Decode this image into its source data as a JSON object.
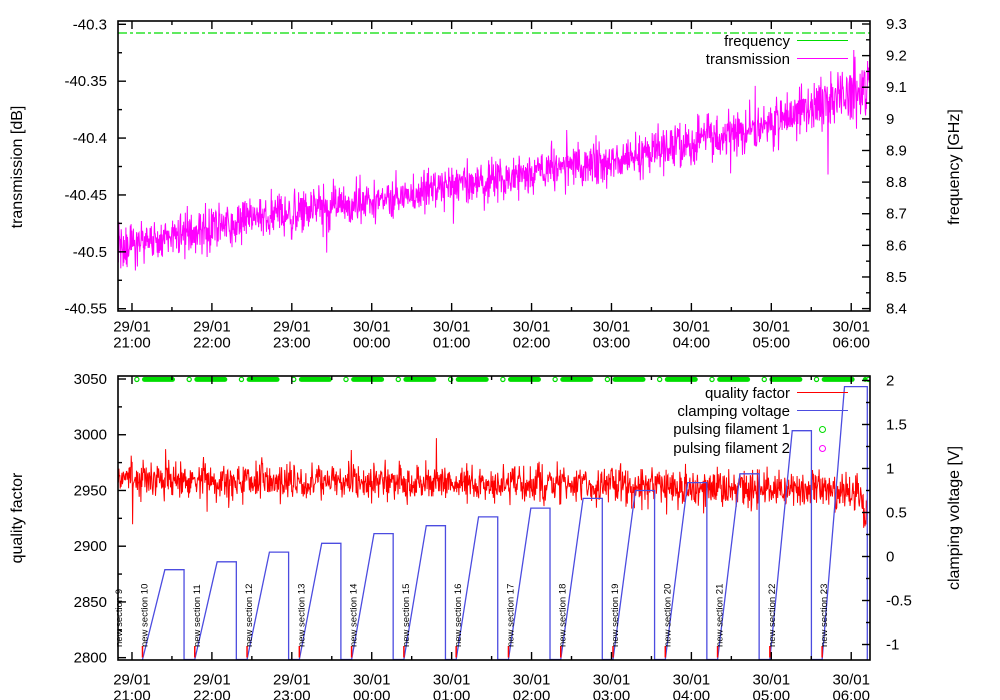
{
  "colors": {
    "magenta": "#ff00ff",
    "red": "#ff0000",
    "green": "#00dd00",
    "blue": "#4c4ce0",
    "axis": "#000000",
    "background": "#ffffff"
  },
  "chart_data": [
    {
      "type": "line",
      "panel": "top",
      "x_axis": {
        "lim_hours": [
          -0.175,
          9.235
        ],
        "major_tick_hours": [
          0,
          1,
          2,
          3,
          4,
          5,
          6,
          7,
          8,
          9
        ],
        "minor_tick_hours": [
          0.5,
          1.5,
          2.5,
          3.5,
          4.5,
          5.5,
          6.5,
          7.5,
          8.5
        ],
        "tick_dates": [
          "29/01",
          "29/01",
          "29/01",
          "30/01",
          "30/01",
          "30/01",
          "30/01",
          "30/01",
          "30/01",
          "30/01"
        ],
        "tick_times": [
          "21:00",
          "22:00",
          "23:00",
          "00:00",
          "01:00",
          "02:00",
          "03:00",
          "04:00",
          "05:00",
          "06:00"
        ]
      },
      "y_left": {
        "label": "transmission [dB]",
        "lim": [
          -40.552,
          -40.2971
        ],
        "ticks": [
          -40.3,
          -40.35,
          -40.4,
          -40.45,
          -40.5,
          -40.55
        ],
        "tick_labels": [
          "-40.3",
          "-40.35",
          "-40.4",
          "-40.45",
          "-40.5",
          "-40.55"
        ],
        "minor_ticks": [
          -40.325,
          -40.375,
          -40.425,
          -40.475,
          -40.525
        ]
      },
      "y_right": {
        "label": "frequency [GHz]",
        "lim": [
          8.3924,
          9.3095
        ],
        "ticks": [
          9.3,
          9.2,
          9.1,
          9,
          8.9,
          8.8,
          8.7,
          8.6,
          8.5,
          8.4
        ],
        "tick_labels": [
          "9.3",
          "9.2",
          "9.1",
          "9",
          "8.9",
          "8.8",
          "8.7",
          "8.6",
          "8.5",
          "8.4"
        ],
        "minor_ticks": [
          9.25,
          9.15,
          9.05,
          8.95,
          8.85,
          8.75,
          8.65,
          8.55,
          8.45
        ]
      },
      "legend": [
        {
          "label": "frequency",
          "color": "#00dd00",
          "marker": "line"
        },
        {
          "label": "transmission",
          "color": "#ff00ff",
          "marker": "line"
        }
      ],
      "series": [
        {
          "name": "frequency",
          "kind": "hline",
          "axis": "right",
          "value_ghz": 9.2715,
          "color": "#00dd00",
          "dash": "9 3 3 3"
        },
        {
          "name": "transmission",
          "kind": "noisy_line",
          "axis": "left",
          "color": "#ff00ff",
          "n": 1900,
          "t0": -0.175,
          "t1": 9.235,
          "seed": 42,
          "sigma": 0.0095,
          "spike_prob": 0.018,
          "spike_amp": 0.038,
          "widen_after": 8.2,
          "widen_rate": 0.55,
          "trend": [
            [
              -0.175,
              -40.497
            ],
            [
              0.5,
              -40.4875
            ],
            [
              1,
              -40.4785
            ],
            [
              1.5,
              -40.4715
            ],
            [
              2,
              -40.467
            ],
            [
              2.5,
              -40.461
            ],
            [
              3,
              -40.4545
            ],
            [
              3.5,
              -40.449
            ],
            [
              4,
              -40.4425
            ],
            [
              4.5,
              -40.4375
            ],
            [
              5,
              -40.4315
            ],
            [
              5.5,
              -40.4255
            ],
            [
              6,
              -40.4195
            ],
            [
              6.5,
              -40.4125
            ],
            [
              7,
              -40.4045
            ],
            [
              7.5,
              -40.397
            ],
            [
              8,
              -40.3875
            ],
            [
              8.5,
              -40.374
            ],
            [
              8.9,
              -40.3615
            ],
            [
              9.235,
              -40.3525
            ]
          ]
        }
      ]
    },
    {
      "type": "line",
      "panel": "bottom",
      "x_axis": {
        "lim_hours": [
          -0.175,
          9.235
        ],
        "major_tick_hours": [
          0,
          1,
          2,
          3,
          4,
          5,
          6,
          7,
          8,
          9
        ],
        "minor_tick_hours": [
          0.5,
          1.5,
          2.5,
          3.5,
          4.5,
          5.5,
          6.5,
          7.5,
          8.5
        ],
        "tick_dates": [
          "29/01",
          "29/01",
          "29/01",
          "30/01",
          "30/01",
          "30/01",
          "30/01",
          "30/01",
          "30/01",
          "30/01"
        ],
        "tick_times": [
          "21:00",
          "22:00",
          "23:00",
          "00:00",
          "01:00",
          "02:00",
          "03:00",
          "04:00",
          "05:00",
          "06:00"
        ]
      },
      "y_left": {
        "label": "quality factor",
        "lim": [
          2797.9,
          3052.7
        ],
        "ticks": [
          3050,
          3000,
          2950,
          2900,
          2850,
          2800
        ],
        "tick_labels": [
          "3050",
          "3000",
          "2950",
          "2900",
          "2850",
          "2800"
        ],
        "minor_ticks": [
          3025,
          2975,
          2925,
          2875,
          2825
        ]
      },
      "y_right": {
        "label": "clamping voltage [V]",
        "lim": [
          -1.176,
          2.051
        ],
        "ticks": [
          2,
          1.5,
          1,
          0.5,
          0,
          -0.5,
          -1
        ],
        "tick_labels": [
          "2",
          "1.5",
          "1",
          "0.5",
          "0",
          "-0.5",
          "-1"
        ],
        "minor_ticks": [
          1.75,
          1.25,
          0.75,
          0.25,
          -0.25,
          -0.75
        ]
      },
      "legend": [
        {
          "label": "quality factor",
          "color": "#ff0000",
          "marker": "line"
        },
        {
          "label": "clamping voltage",
          "color": "#4c4ce0",
          "marker": "line"
        },
        {
          "label": "pulsing filament 1",
          "color": "#00dd00",
          "marker": "circle"
        },
        {
          "label": "pulsing filament 2",
          "color": "#ff00ff",
          "marker": "circle"
        }
      ],
      "series": [
        {
          "name": "quality factor",
          "kind": "noisy_line",
          "axis": "left",
          "color": "#ff0000",
          "n": 1700,
          "t0": -0.175,
          "t1": 9.2,
          "seed": 7,
          "sigma": 8.2,
          "spike_prob": 0.02,
          "spike_amp": 30,
          "trend": [
            [
              -0.175,
              2961
            ],
            [
              2,
              2958.5
            ],
            [
              4,
              2956.5
            ],
            [
              6,
              2954
            ],
            [
              7.5,
              2951.5
            ],
            [
              9.0,
              2949
            ],
            [
              9.13,
              2948
            ],
            [
              9.17,
              2912
            ],
            [
              9.2,
              2946
            ]
          ]
        },
        {
          "name": "clamping voltage",
          "kind": "sawtooth",
          "axis": "right",
          "color": "#4c4ce0",
          "base_v": -1.17,
          "rise_hours": 0.28,
          "hold_hours": 0.52,
          "last_hold_hours": 0.565,
          "cycle_start_hours": [
            0.1315,
            0.7857,
            1.4399,
            2.0941,
            2.7483,
            3.4025,
            4.0567,
            4.7109,
            5.3651,
            6.0193,
            6.6735,
            7.3277,
            7.9819,
            8.6361
          ],
          "plateau_v": [
            -0.15,
            -0.06,
            0.05,
            0.15,
            0.26,
            0.35,
            0.45,
            0.55,
            0.66,
            0.75,
            0.84,
            0.94,
            1.43,
            1.93
          ]
        },
        {
          "name": "pulsing filament 1",
          "kind": "marker_row",
          "axis": "right",
          "color": "#00dd00",
          "row_v": 2.012,
          "circle_hours": [
            0.061,
            0.716,
            1.37,
            2.024,
            2.678,
            3.332,
            3.987,
            4.641,
            5.295,
            5.949,
            6.603,
            7.258,
            7.912,
            8.566,
            9.218
          ],
          "bar_hours": [
            [
              0.125,
              0.538
            ],
            [
              0.78,
              1.193
            ],
            [
              1.434,
              1.847
            ],
            [
              2.088,
              2.501
            ],
            [
              2.742,
              3.155
            ],
            [
              3.396,
              3.809
            ],
            [
              4.051,
              4.464
            ],
            [
              4.705,
              5.118
            ],
            [
              5.359,
              5.772
            ],
            [
              6.013,
              6.426
            ],
            [
              6.667,
              7.08
            ],
            [
              7.322,
              7.735
            ],
            [
              7.976,
              8.389
            ],
            [
              8.63,
              9.043
            ],
            [
              9.145,
              9.205
            ]
          ]
        },
        {
          "name": "pulsing filament 2",
          "kind": "markers",
          "axis": "right",
          "color": "#ff00ff",
          "points": []
        }
      ],
      "sections": {
        "labels": [
          "new section 9",
          "new section 10",
          "new section 11",
          "new section 12",
          "new section 13",
          "new section 14",
          "new section 15",
          "new section 16",
          "new section 17",
          "new section 18",
          "new section 19",
          "new section 20",
          "new section 21",
          "new section 22",
          "new section 23"
        ],
        "hours": [
          -0.5227,
          0.1315,
          0.7857,
          1.4399,
          2.0941,
          2.7483,
          3.4025,
          4.0567,
          4.7109,
          5.3651,
          6.0193,
          6.6735,
          7.3277,
          7.9819,
          8.6361
        ],
        "tick_color": "#ff0000",
        "clipped_first_label_x": 122
      }
    }
  ]
}
